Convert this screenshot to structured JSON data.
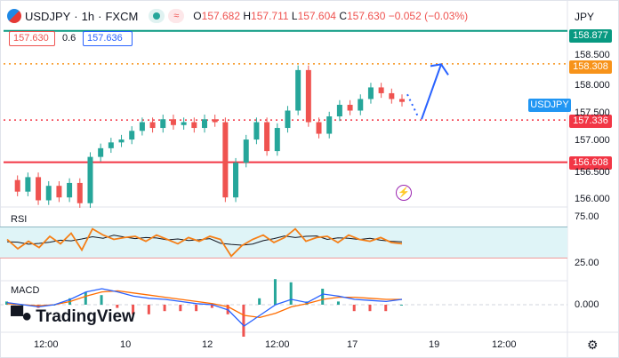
{
  "header": {
    "symbol": "USDJPY",
    "interval": "1h",
    "source": "FXCM",
    "open_label": "O",
    "open": "157.682",
    "high_label": "H",
    "high": "157.711",
    "low_label": "L",
    "low": "157.604",
    "close_label": "C",
    "close": "157.630",
    "change": "−0.052 (−0.03%)",
    "currency": "JPY"
  },
  "order_panel": {
    "sell_price": "157.630",
    "spread": "0.6",
    "buy_price": "157.636"
  },
  "price_tags": {
    "top_line": "158.877",
    "orange_level": "158.308",
    "symbol_tag": "USDJPY",
    "current": "157.336",
    "red_level": "156.608"
  },
  "y_axis_labels": [
    "158.500",
    "158.000",
    "157.500",
    "157.000",
    "156.500",
    "156.000"
  ],
  "rsi": {
    "label": "RSI",
    "upper": "75.00",
    "lower": "25.00"
  },
  "macd": {
    "label": "MACD",
    "zero": "0.000"
  },
  "x_axis_labels": [
    "12:00",
    "10",
    "12",
    "12:00",
    "17",
    "19",
    "12:00"
  ],
  "brand": {
    "name": "TradingView"
  },
  "colors": {
    "up": "#26a69a",
    "down": "#ef5350",
    "teal_line": "#089981",
    "orange": "#f7931a",
    "red_line": "#f23645",
    "blue": "#2962ff",
    "rsi_band": "#dff4f7",
    "rsi_line": "#f57f17",
    "macd_line": "#2962ff",
    "signal_line": "#ff6d00"
  },
  "chart_data": {
    "type": "candlestick",
    "title": "USDJPY · 1h · FXCM",
    "x_ticks": [
      "12:00",
      "10",
      "12",
      "12:00",
      "17",
      "19",
      "12:00"
    ],
    "y_ticks": [
      156.0,
      156.5,
      157.0,
      157.5,
      158.0,
      158.5
    ],
    "ylim": [
      155.85,
      158.95
    ],
    "horizontal_levels": [
      {
        "value": 158.877,
        "style": "solid",
        "color": "#089981"
      },
      {
        "value": 158.308,
        "style": "dotted",
        "color": "#f7931a"
      },
      {
        "value": 157.336,
        "style": "dotted",
        "color": "#f23645"
      },
      {
        "value": 156.608,
        "style": "solid",
        "color": "#f23645"
      }
    ],
    "series": [
      {
        "name": "USDJPY",
        "price_points": [
          156.3,
          156.1,
          156.35,
          155.95,
          156.2,
          156.0,
          156.25,
          155.9,
          156.7,
          156.85,
          156.95,
          157.0,
          157.15,
          157.3,
          157.2,
          157.35,
          157.25,
          157.3,
          157.2,
          157.35,
          157.3,
          156.0,
          156.6,
          157.0,
          157.3,
          156.8,
          157.2,
          157.5,
          158.2,
          157.3,
          157.1,
          157.4,
          157.6,
          157.5,
          157.7,
          157.9,
          157.8,
          157.7,
          157.65
        ]
      }
    ],
    "forecast_arrow": {
      "from": 157.35,
      "to": 158.3
    },
    "rsi": {
      "range": [
        0,
        100
      ],
      "upper": 75,
      "lower": 25,
      "values": [
        55,
        40,
        52,
        42,
        60,
        48,
        65,
        38,
        72,
        62,
        55,
        58,
        60,
        52,
        62,
        55,
        48,
        58,
        52,
        60,
        55,
        28,
        45,
        55,
        62,
        50,
        58,
        72,
        52,
        58,
        60,
        50,
        62,
        55,
        52,
        58,
        50,
        48
      ]
    },
    "macd": {
      "zero": 0.0,
      "values": [
        0.02,
        0.0,
        -0.02,
        0.0,
        0.05,
        0.12,
        0.15,
        0.12,
        0.08,
        0.06,
        0.05,
        0.03,
        0.01,
        0.0,
        -0.05,
        -0.2,
        -0.1,
        0.0,
        0.05,
        0.02,
        0.1,
        0.08,
        0.05,
        0.04,
        0.03,
        0.05
      ],
      "signal": [
        0.01,
        0.0,
        -0.01,
        0.0,
        0.03,
        0.08,
        0.12,
        0.13,
        0.11,
        0.09,
        0.07,
        0.05,
        0.03,
        0.01,
        -0.02,
        -0.1,
        -0.12,
        -0.08,
        -0.02,
        0.01,
        0.05,
        0.07,
        0.07,
        0.06,
        0.05,
        0.05
      ]
    }
  }
}
